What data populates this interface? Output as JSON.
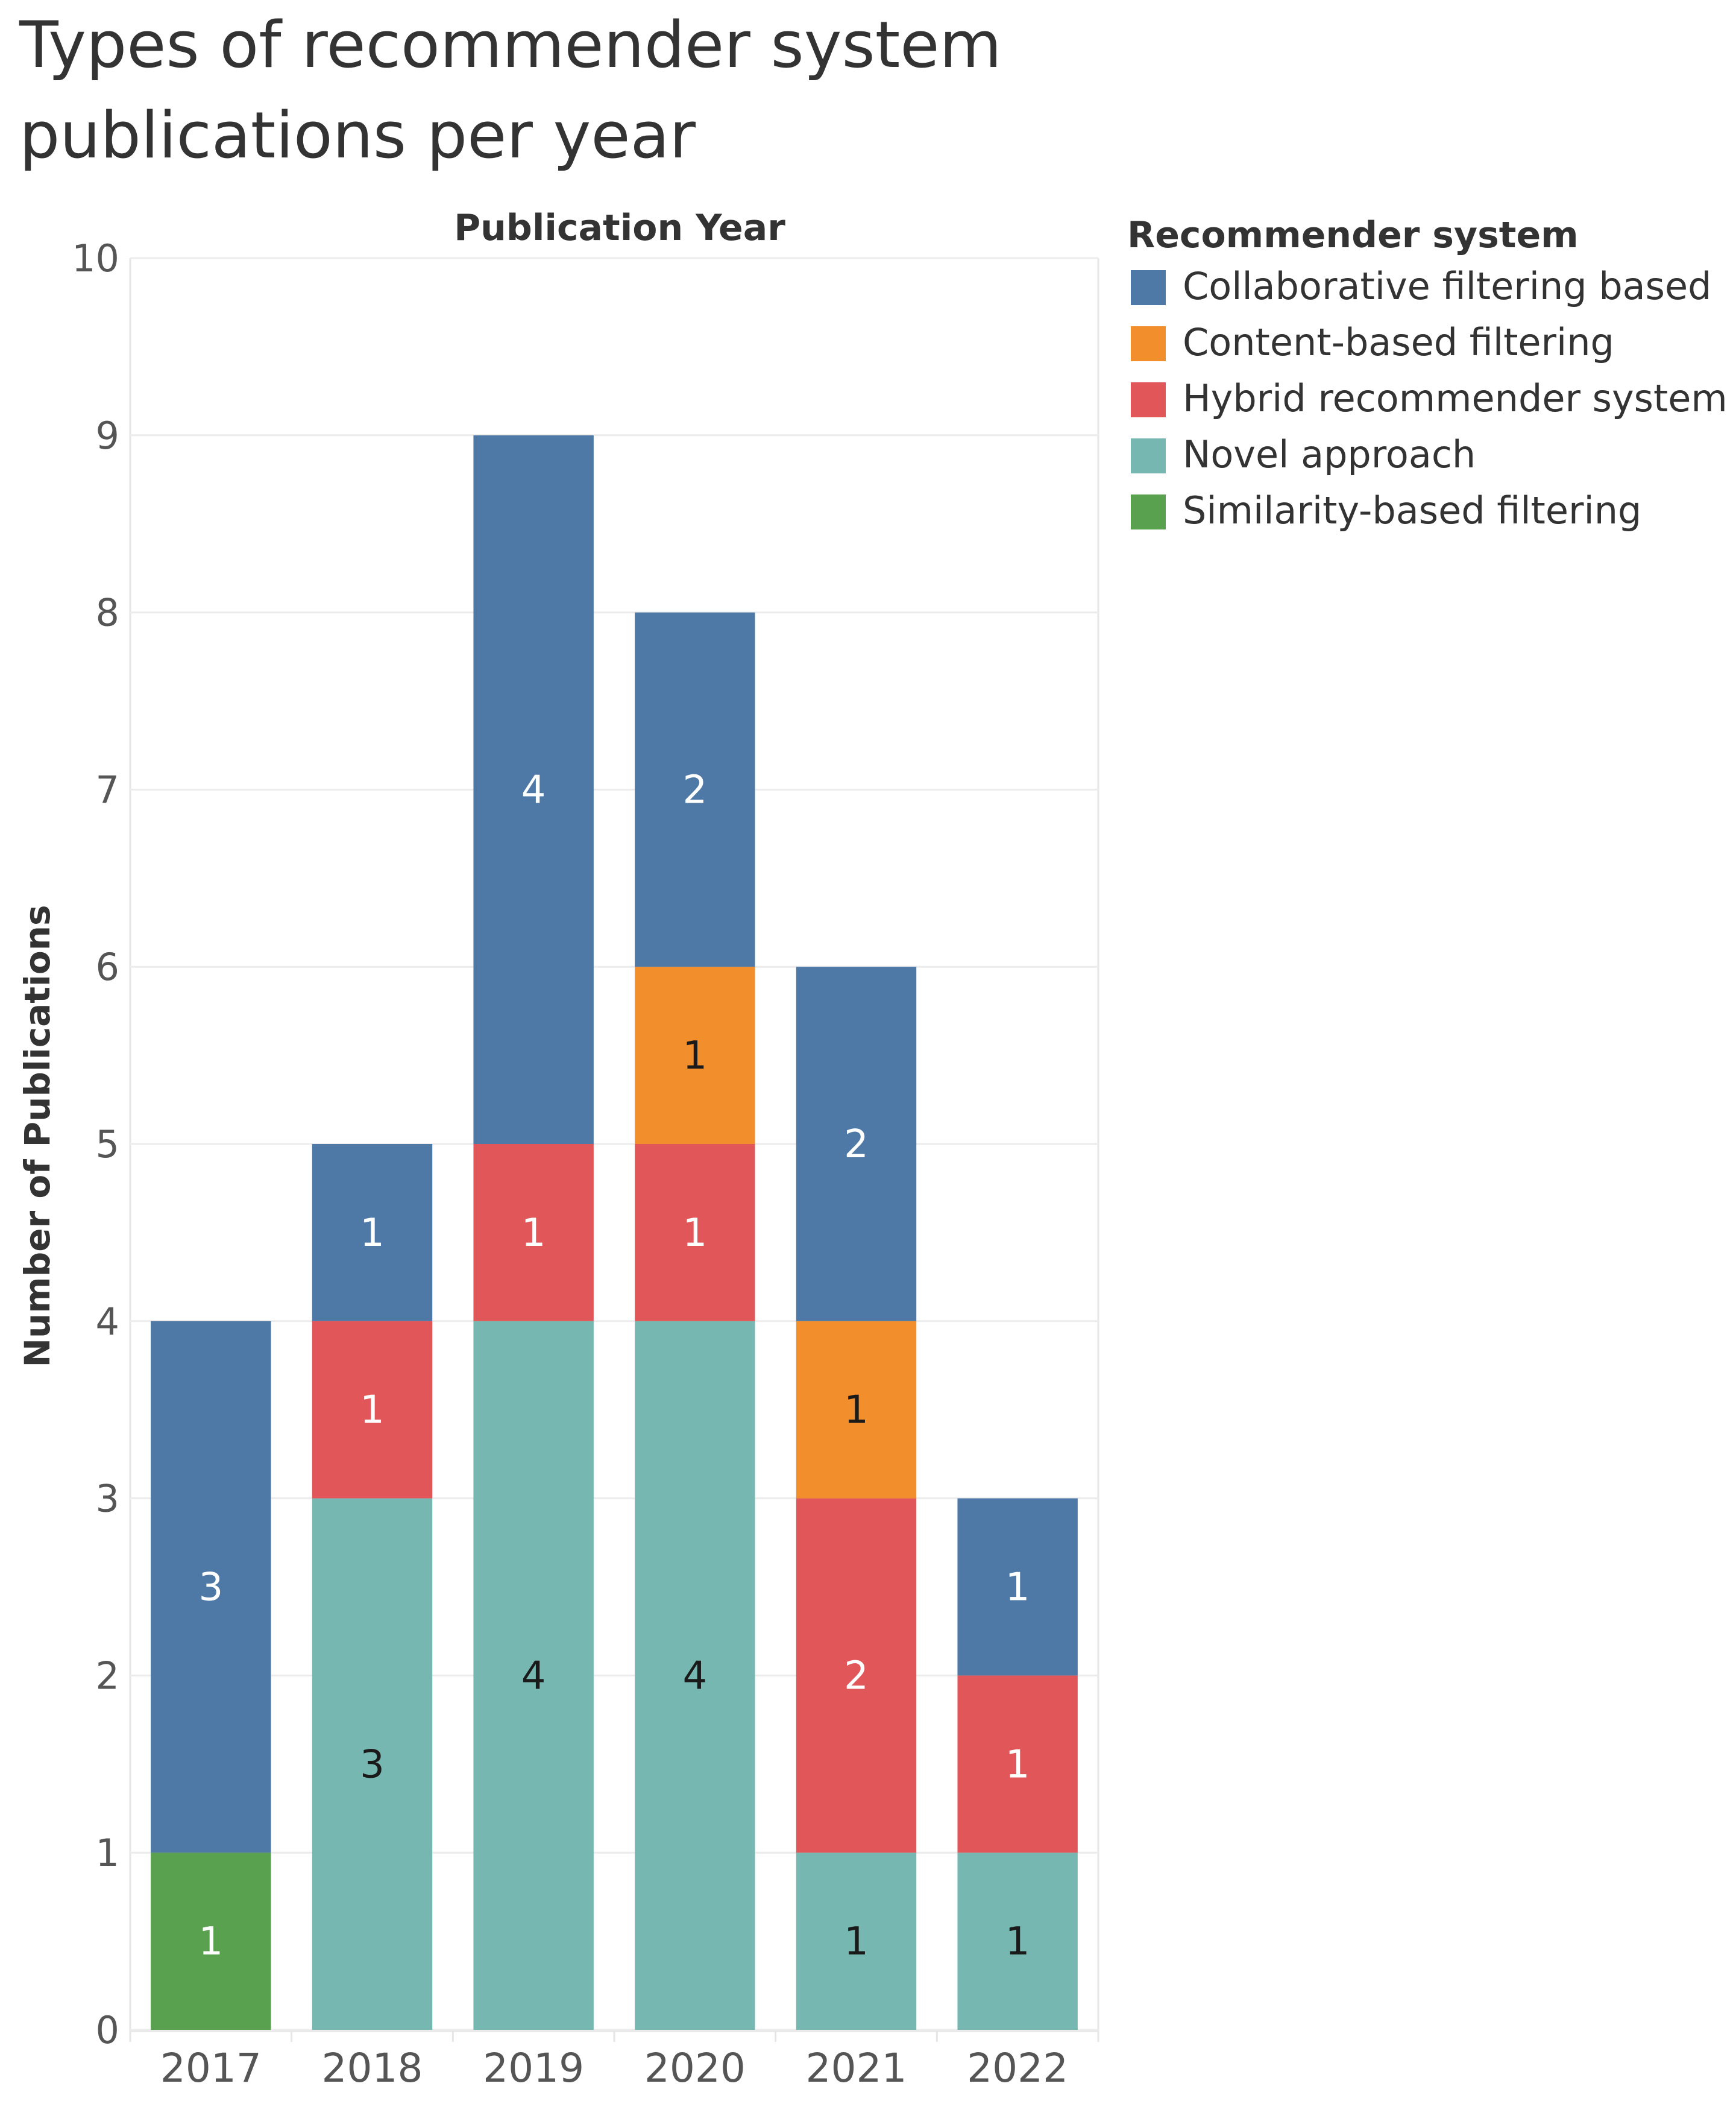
{
  "chart_data": {
    "type": "bar",
    "stacked": true,
    "title": "Types of recommender system publications per year",
    "xlabel": "Publication Year",
    "ylabel": "Number of Publications",
    "ylim": [
      0,
      10
    ],
    "yticks": [
      0,
      1,
      2,
      3,
      4,
      5,
      6,
      7,
      8,
      9,
      10
    ],
    "categories": [
      "2017",
      "2018",
      "2019",
      "2020",
      "2021",
      "2022"
    ],
    "grid": true,
    "legend": {
      "title": "Recommender system",
      "placement": "right"
    },
    "series": [
      {
        "name": "Similarity-based filtering",
        "color": "#59a14f",
        "label_color": "#ffffff",
        "values": [
          1,
          0,
          0,
          0,
          0,
          0
        ]
      },
      {
        "name": "Novel approach",
        "color": "#76b7b2",
        "label_color": "#1a1a1a",
        "values": [
          0,
          3,
          4,
          4,
          1,
          1
        ]
      },
      {
        "name": "Hybrid recommender system",
        "color": "#e15759",
        "label_color": "#ffffff",
        "values": [
          0,
          1,
          1,
          1,
          2,
          1
        ]
      },
      {
        "name": "Content-based filtering",
        "color": "#f28e2b",
        "label_color": "#1a1a1a",
        "values": [
          0,
          0,
          0,
          1,
          1,
          0
        ]
      },
      {
        "name": "Collaborative filtering based",
        "color": "#4e79a7",
        "label_color": "#ffffff",
        "values": [
          3,
          1,
          4,
          2,
          2,
          1
        ]
      }
    ],
    "legend_order": [
      "Collaborative filtering based",
      "Content-based filtering",
      "Hybrid recommender system",
      "Novel approach",
      "Similarity-based filtering"
    ]
  }
}
